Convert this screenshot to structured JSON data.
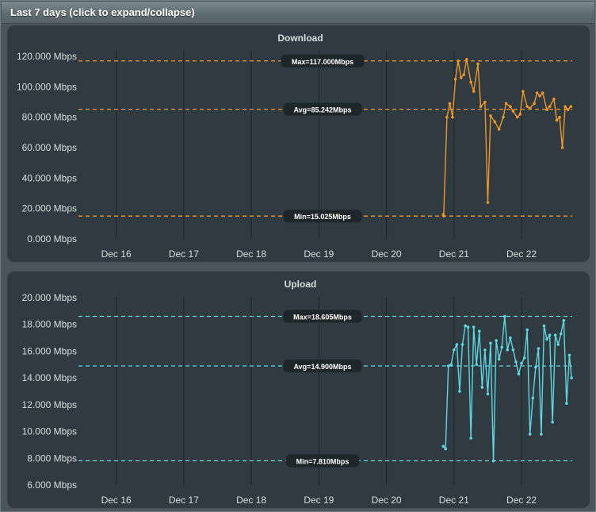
{
  "header": {
    "title": "Last 7 days (click to expand/collapse)"
  },
  "colors": {
    "download": "#f0962a",
    "upload": "#5fd6e0",
    "grid": "#1d2427",
    "panel": "#2f3b40",
    "axis_text": "#d7dcde"
  },
  "chart_data": [
    {
      "type": "line",
      "title": "Download",
      "unit": "Mbps",
      "ylim": [
        0,
        120
      ],
      "yticks": [
        "0.000 Mbps",
        "20.000 Mbps",
        "40.000 Mbps",
        "60.000 Mbps",
        "80.000 Mbps",
        "100.000 Mbps",
        "120.000 Mbps"
      ],
      "xlim": [
        "2023-12-15T12:00",
        "2023-12-22T18:00"
      ],
      "xticks": [
        "Dec 16",
        "Dec 17",
        "Dec 18",
        "Dec 19",
        "Dec 20",
        "Dec 21",
        "Dec 22"
      ],
      "xtick_dates": [
        "2023-12-16",
        "2023-12-17",
        "2023-12-18",
        "2023-12-19",
        "2023-12-20",
        "2023-12-21",
        "2023-12-22"
      ],
      "lines": [
        {
          "label": "Max=117.000Mbps",
          "value": 117.0
        },
        {
          "label": "Avg=85.242Mbps",
          "value": 85.242
        },
        {
          "label": "Min=15.025Mbps",
          "value": 15.025
        }
      ],
      "series": [
        {
          "x": [
            "2023-12-20T20:10",
            "2023-12-20T20:20",
            "2023-12-20T21:30",
            "2023-12-20T22:30",
            "2023-12-20T23:30",
            "2023-12-21T00:30",
            "2023-12-21T01:30",
            "2023-12-21T02:30",
            "2023-12-21T03:30",
            "2023-12-21T04:30",
            "2023-12-21T06:00",
            "2023-12-21T07:00",
            "2023-12-21T08:30",
            "2023-12-21T09:30",
            "2023-12-21T11:00",
            "2023-12-21T12:00",
            "2023-12-21T13:00",
            "2023-12-21T14:30",
            "2023-12-21T16:00",
            "2023-12-21T17:30",
            "2023-12-21T18:30",
            "2023-12-21T20:00",
            "2023-12-21T21:00",
            "2023-12-21T22:30",
            "2023-12-21T23:30",
            "2023-12-22T00:30",
            "2023-12-22T02:00",
            "2023-12-22T03:00",
            "2023-12-22T04:30",
            "2023-12-22T05:30",
            "2023-12-22T06:30",
            "2023-12-22T07:30",
            "2023-12-22T09:00",
            "2023-12-22T10:00",
            "2023-12-22T11:30",
            "2023-12-22T12:30",
            "2023-12-22T13:30",
            "2023-12-22T14:30",
            "2023-12-22T15:30",
            "2023-12-22T16:30",
            "2023-12-22T17:30"
          ],
          "y": [
            16,
            15,
            80,
            89,
            80,
            105,
            117,
            106,
            108,
            118,
            103,
            97,
            115,
            87,
            90,
            24,
            81,
            77,
            72,
            80,
            89,
            87,
            84,
            80,
            82,
            97,
            87,
            86,
            89,
            96,
            94,
            96,
            85,
            87,
            92,
            78,
            80,
            60,
            87,
            85,
            87
          ]
        }
      ]
    },
    {
      "type": "line",
      "title": "Upload",
      "unit": "Mbps",
      "ylim": [
        6,
        20
      ],
      "yticks": [
        "6.000 Mbps",
        "8.000 Mbps",
        "10.000 Mbps",
        "12.000 Mbps",
        "14.000 Mbps",
        "16.000 Mbps",
        "18.000 Mbps",
        "20.000 Mbps"
      ],
      "xlim": [
        "2023-12-15T12:00",
        "2023-12-22T18:00"
      ],
      "xticks": [
        "Dec 16",
        "Dec 17",
        "Dec 18",
        "Dec 19",
        "Dec 20",
        "Dec 21",
        "Dec 22"
      ],
      "xtick_dates": [
        "2023-12-16",
        "2023-12-17",
        "2023-12-18",
        "2023-12-19",
        "2023-12-20",
        "2023-12-21",
        "2023-12-22"
      ],
      "lines": [
        {
          "label": "Max=18.605Mbps",
          "value": 18.605
        },
        {
          "label": "Avg=14.900Mbps",
          "value": 14.9
        },
        {
          "label": "Min=7.810Mbps",
          "value": 7.81
        }
      ],
      "series": [
        {
          "x": [
            "2023-12-20T20:10",
            "2023-12-20T21:00",
            "2023-12-20T22:00",
            "2023-12-20T23:00",
            "2023-12-21T00:00",
            "2023-12-21T01:00",
            "2023-12-21T02:00",
            "2023-12-21T03:00",
            "2023-12-21T04:00",
            "2023-12-21T05:00",
            "2023-12-21T06:00",
            "2023-12-21T07:00",
            "2023-12-21T08:00",
            "2023-12-21T09:00",
            "2023-12-21T10:00",
            "2023-12-21T11:00",
            "2023-12-21T12:00",
            "2023-12-21T13:00",
            "2023-12-21T14:00",
            "2023-12-21T15:00",
            "2023-12-21T16:00",
            "2023-12-21T17:00",
            "2023-12-21T18:00",
            "2023-12-21T19:00",
            "2023-12-21T20:00",
            "2023-12-21T21:00",
            "2023-12-21T22:00",
            "2023-12-21T23:00",
            "2023-12-22T00:00",
            "2023-12-22T01:00",
            "2023-12-22T02:00",
            "2023-12-22T03:00",
            "2023-12-22T04:00",
            "2023-12-22T05:00",
            "2023-12-22T06:00",
            "2023-12-22T07:00",
            "2023-12-22T08:00",
            "2023-12-22T09:00",
            "2023-12-22T10:00",
            "2023-12-22T11:00",
            "2023-12-22T12:00",
            "2023-12-22T13:00",
            "2023-12-22T14:00",
            "2023-12-22T15:00",
            "2023-12-22T16:00",
            "2023-12-22T17:00",
            "2023-12-22T17:45"
          ],
          "y": [
            8.9,
            8.7,
            14.9,
            15.0,
            16.1,
            16.5,
            13.0,
            16.5,
            17.9,
            17.8,
            9.5,
            17.8,
            15.0,
            17.5,
            13.3,
            16.1,
            12.8,
            16.6,
            7.8,
            16.8,
            15.4,
            16.3,
            18.6,
            16.1,
            17.0,
            16.1,
            15.2,
            14.3,
            15.1,
            15.5,
            17.6,
            9.8,
            12.5,
            14.8,
            16.2,
            9.8,
            17.9,
            16.9,
            17.2,
            10.7,
            17.2,
            16.5,
            17.3,
            18.3,
            12.1,
            15.7,
            14.0
          ]
        }
      ]
    }
  ]
}
